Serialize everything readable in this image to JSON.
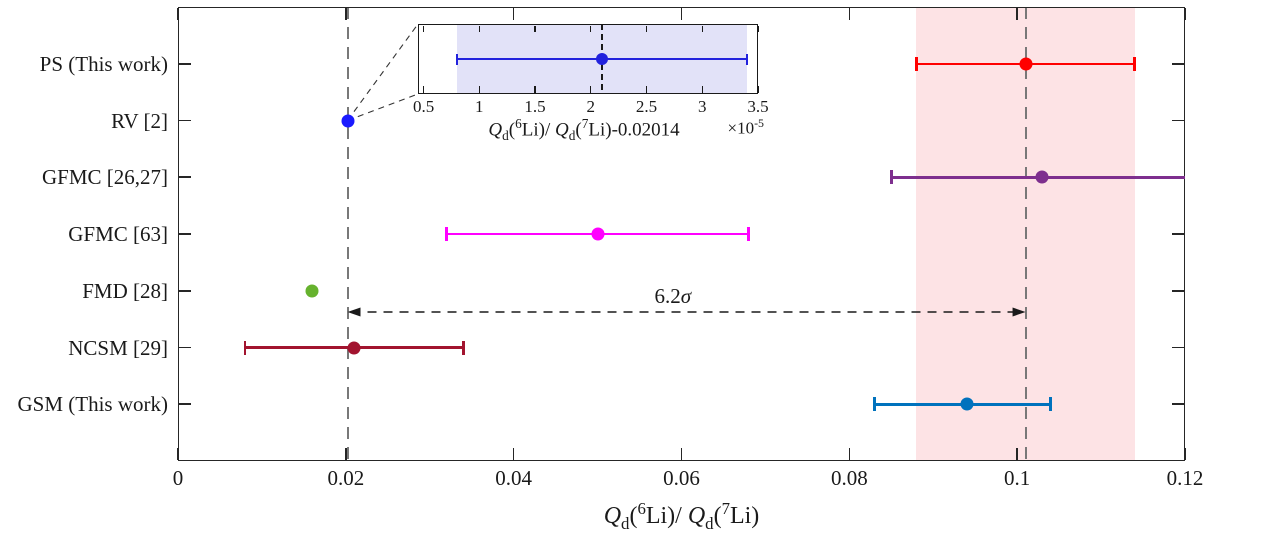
{
  "figure": {
    "background": "#ffffff",
    "axis_color": "#262626"
  },
  "chart_data": {
    "type": "scatter",
    "title": "",
    "legend": "none",
    "grid": "off",
    "xlim": [
      0,
      0.12
    ],
    "xtick_values": [
      0,
      0.02,
      0.04,
      0.06,
      0.08,
      0.1,
      0.12
    ],
    "xtick_labels": [
      "0",
      "0.02",
      "0.04",
      "0.06",
      "0.08",
      "0.1",
      "0.12"
    ],
    "xlabel_rich": [
      {
        "t": "Q",
        "s": "i"
      },
      {
        "t": "d",
        "s": "sub"
      },
      {
        "t": "(",
        "s": "n"
      },
      {
        "t": "6",
        "s": "sup"
      },
      {
        "t": "Li)/ ",
        "s": "n"
      },
      {
        "t": "Q",
        "s": "i"
      },
      {
        "t": "d",
        "s": "sub"
      },
      {
        "t": "(",
        "s": "n"
      },
      {
        "t": "7",
        "s": "sup"
      },
      {
        "t": "Li)",
        "s": "n"
      }
    ],
    "series": [
      {
        "label": "PS (This work)",
        "value": 0.101,
        "low": 0.088,
        "high": 0.114,
        "color": "#ff0000",
        "cap_left": true,
        "cap_right": true
      },
      {
        "label": "RV [2]",
        "value": 0.0202,
        "low": null,
        "high": null,
        "color": "#1a1aff",
        "cap_left": false,
        "cap_right": false
      },
      {
        "label": "GFMC [26,27]",
        "value": 0.103,
        "low": 0.085,
        "high": 0.12,
        "color": "#7e2f8e",
        "cap_left": true,
        "cap_right": false
      },
      {
        "label": "GFMC [63]",
        "value": 0.05,
        "low": 0.032,
        "high": 0.068,
        "color": "#ff00ff",
        "cap_left": true,
        "cap_right": true
      },
      {
        "label": "FMD [28]",
        "value": 0.016,
        "low": null,
        "high": null,
        "color": "#66b22e",
        "cap_left": false,
        "cap_right": false
      },
      {
        "label": "NCSM [29]",
        "value": 0.021,
        "low": 0.008,
        "high": 0.034,
        "color": "#a2142f",
        "cap_left": true,
        "cap_right": true
      },
      {
        "label": "GSM (This work)",
        "value": 0.094,
        "low": 0.083,
        "high": 0.104,
        "color": "#0072bd",
        "cap_left": true,
        "cap_right": true
      }
    ],
    "band": {
      "from": 0.088,
      "to": 0.114,
      "color": "#fde3e5"
    },
    "vlines": {
      "values": [
        0.0202,
        0.101
      ],
      "color": "#787878"
    },
    "annotation": {
      "label_rich": [
        {
          "t": "6.2",
          "s": "n"
        },
        {
          "t": "σ",
          "s": "i"
        }
      ],
      "from": 0.0202,
      "to": 0.101,
      "color": "#1a1a1a"
    },
    "inset": {
      "xlim": [
        0.45,
        3.5
      ],
      "xtick_values": [
        0.5,
        1,
        1.5,
        2,
        2.5,
        3,
        3.5
      ],
      "xtick_labels": [
        "0.5",
        "1",
        "1.5",
        "2",
        "2.5",
        "3",
        "3.5"
      ],
      "point": {
        "value": 2.1,
        "low": 0.8,
        "high": 3.4,
        "color": "#2222dd"
      },
      "band": {
        "from": 0.8,
        "to": 3.4,
        "color": "#e2e2f8"
      },
      "vline": 2.1,
      "xlabel_rich": [
        {
          "t": "Q",
          "s": "i"
        },
        {
          "t": "d",
          "s": "sub"
        },
        {
          "t": "(",
          "s": "n"
        },
        {
          "t": "6",
          "s": "sup"
        },
        {
          "t": "Li)/ ",
          "s": "n"
        },
        {
          "t": "Q",
          "s": "i"
        },
        {
          "t": "d",
          "s": "sub"
        },
        {
          "t": "(",
          "s": "n"
        },
        {
          "t": "7",
          "s": "sup"
        },
        {
          "t": "Li)-0.02014",
          "s": "n"
        }
      ],
      "multiplier_rich": [
        {
          "t": "×10",
          "s": "n"
        },
        {
          "t": "-5",
          "s": "sup"
        }
      ]
    }
  }
}
